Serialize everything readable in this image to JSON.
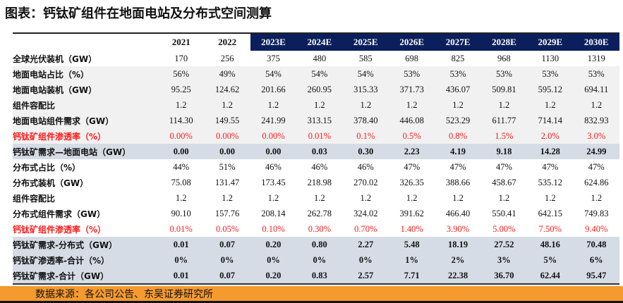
{
  "title": "图表：钙钛矿组件在地面电站及分布式空间测算",
  "columns": [
    "2021",
    "2022",
    "2023E",
    "2024E",
    "2025E",
    "2026E",
    "2027E",
    "2028E",
    "2029E",
    "2030E"
  ],
  "rows": [
    {
      "label": "全球光伏装机（GW）",
      "style": "white",
      "values": [
        "170",
        "256",
        "375",
        "480",
        "585",
        "698",
        "825",
        "968",
        "1130",
        "1319"
      ]
    },
    {
      "label": "地面电站占比（%）",
      "style": "gray",
      "values": [
        "56%",
        "49%",
        "54%",
        "54%",
        "54%",
        "53%",
        "53%",
        "53%",
        "53%",
        "53%"
      ]
    },
    {
      "label": "地面电站装机（GW）",
      "style": "gray",
      "values": [
        "95.25",
        "124.62",
        "201.66",
        "260.95",
        "315.33",
        "371.73",
        "436.07",
        "509.81",
        "595.12",
        "694.11"
      ]
    },
    {
      "label": "组件容配比",
      "style": "gray",
      "values": [
        "1.2",
        "1.2",
        "1.2",
        "1.2",
        "1.2",
        "1.2",
        "1.2",
        "1.2",
        "1.2",
        "1.2"
      ]
    },
    {
      "label": "地面电站组件需求（GW）",
      "style": "gray",
      "values": [
        "114.30",
        "149.55",
        "241.99",
        "313.15",
        "378.40",
        "446.08",
        "523.29",
        "611.77",
        "714.14",
        "832.93"
      ]
    },
    {
      "label": "钙钛矿组件渗透率（%）",
      "style": "gray red",
      "values": [
        "0.00%",
        "0.00%",
        "0.00%",
        "0.01%",
        "0.1%",
        "0.5%",
        "0.8%",
        "1.5%",
        "2.0%",
        "3.0%"
      ]
    },
    {
      "label": "钙钛矿需求—地面电站（GW）",
      "style": "blue",
      "values": [
        "0.00",
        "0.00",
        "0.00",
        "0.03",
        "0.30",
        "2.23",
        "4.19",
        "9.18",
        "14.28",
        "24.99"
      ]
    },
    {
      "label": "分布式占比（%）",
      "style": "white",
      "values": [
        "44%",
        "51%",
        "46%",
        "46%",
        "46%",
        "47%",
        "47%",
        "47%",
        "47%",
        "47%"
      ]
    },
    {
      "label": "分布式装机（GW）",
      "style": "white",
      "values": [
        "75.08",
        "131.47",
        "173.45",
        "218.98",
        "270.02",
        "326.35",
        "388.66",
        "458.67",
        "535.12",
        "624.86"
      ]
    },
    {
      "label": "组件容配比",
      "style": "white",
      "values": [
        "1.2",
        "1.2",
        "1.2",
        "1.2",
        "1.2",
        "1.2",
        "1.2",
        "1.2",
        "1.2",
        "1.2"
      ]
    },
    {
      "label": "分布式组件需求（GW）",
      "style": "white",
      "values": [
        "90.10",
        "157.76",
        "208.14",
        "262.78",
        "324.02",
        "391.62",
        "466.40",
        "550.41",
        "642.15",
        "749.83"
      ]
    },
    {
      "label": "钙钛矿组件渗透率（%）",
      "style": "white red",
      "values": [
        "0.01%",
        "0.05%",
        "0.10%",
        "0.30%",
        "0.70%",
        "1.40%",
        "3.90%",
        "5.00%",
        "7.50%",
        "9.40%"
      ]
    },
    {
      "label": "钙钛矿需求-分布式（GW）",
      "style": "blue",
      "values": [
        "0.01",
        "0.07",
        "0.20",
        "0.80",
        "2.27",
        "5.48",
        "18.19",
        "27.52",
        "48.16",
        "70.48"
      ]
    },
    {
      "label": "钙钛矿渗透率-合计（%）",
      "style": "blue",
      "values": [
        "0%",
        "0%",
        "0%",
        "0%",
        "0%",
        "1%",
        "2%",
        "3%",
        "5%",
        "6%"
      ]
    },
    {
      "label": "钙钛矿需求-合计（GW）",
      "style": "blue",
      "values": [
        "0.01",
        "0.07",
        "0.20",
        "0.83",
        "2.57",
        "7.71",
        "22.38",
        "36.70",
        "62.44",
        "95.47"
      ]
    }
  ],
  "footer": "数据来源：各公司公告、东吴证券研究所",
  "colors": {
    "header_estimate": "#0b1f5c",
    "highlight_row": "#d6dce5",
    "red_text": "#ff1a1a",
    "footer_bar": "#f59a2e"
  }
}
